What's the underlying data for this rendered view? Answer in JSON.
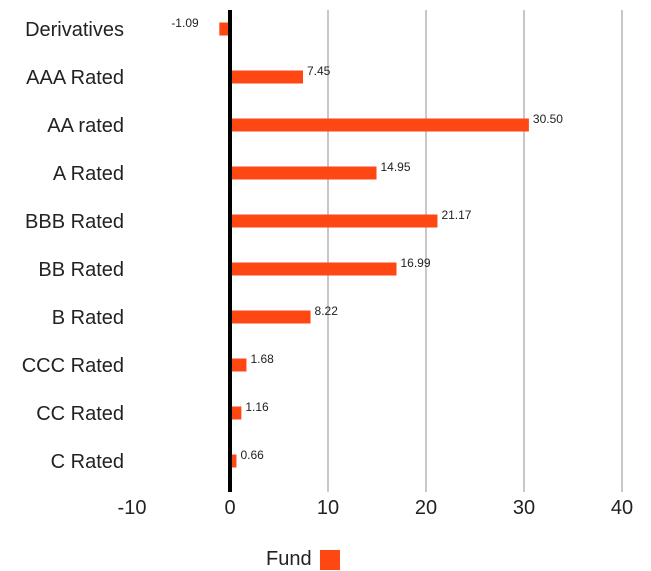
{
  "chart_data": {
    "type": "bar",
    "orientation": "horizontal",
    "categories": [
      "Derivatives",
      "AAA Rated",
      "AA rated",
      "A Rated",
      "BBB Rated",
      "BB Rated",
      "B Rated",
      "CCC Rated",
      "CC Rated",
      "C Rated"
    ],
    "series": [
      {
        "name": "Fund",
        "values": [
          -1.09,
          7.45,
          30.5,
          14.95,
          21.17,
          16.99,
          8.22,
          1.68,
          1.16,
          0.66
        ],
        "labels": [
          "-1.09",
          "7.45",
          "30.50",
          "14.95",
          "21.17",
          "16.99",
          "8.22",
          "1.68",
          "1.16",
          "0.66"
        ]
      }
    ],
    "xlim": [
      -10,
      40
    ],
    "x_ticks": [
      "-10",
      "0",
      "10",
      "20",
      "30",
      "40"
    ],
    "grid": "vertical",
    "legend_position": "bottom",
    "colors": {
      "bar": "#ff4713",
      "grid": "#c8c8c8",
      "zero_line": "#000000"
    }
  }
}
